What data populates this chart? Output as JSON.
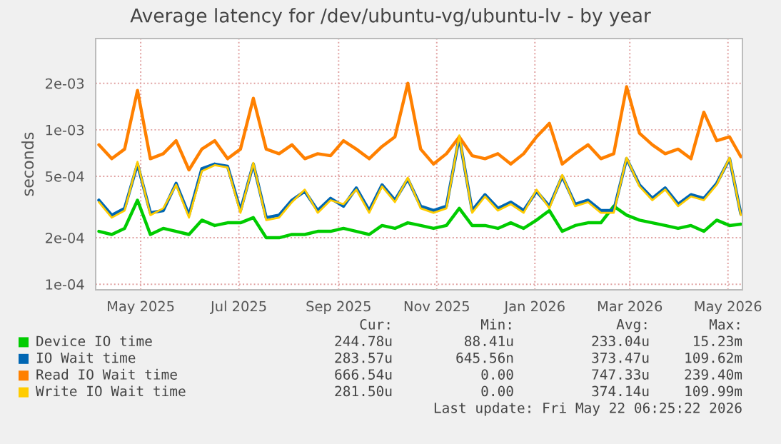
{
  "chart_data": {
    "type": "line",
    "title": "Average latency for /dev/ubuntu-vg/ubuntu-lv - by year",
    "ylabel": "seconds",
    "x": [
      "2025-04-05",
      "2025-04-13",
      "2025-04-21",
      "2025-04-29",
      "2025-05-07",
      "2025-05-15",
      "2025-05-23",
      "2025-05-31",
      "2025-06-08",
      "2025-06-16",
      "2025-06-24",
      "2025-07-02",
      "2025-07-10",
      "2025-07-18",
      "2025-07-26",
      "2025-08-03",
      "2025-08-11",
      "2025-08-19",
      "2025-08-27",
      "2025-09-04",
      "2025-09-12",
      "2025-09-20",
      "2025-09-28",
      "2025-10-06",
      "2025-10-14",
      "2025-10-22",
      "2025-10-30",
      "2025-11-07",
      "2025-11-15",
      "2025-11-23",
      "2025-12-01",
      "2025-12-09",
      "2025-12-17",
      "2025-12-25",
      "2026-01-02",
      "2026-01-10",
      "2026-01-18",
      "2026-01-26",
      "2026-02-03",
      "2026-02-11",
      "2026-02-19",
      "2026-02-27",
      "2026-03-07",
      "2026-03-15",
      "2026-03-23",
      "2026-03-31",
      "2026-04-08",
      "2026-04-16",
      "2026-04-24",
      "2026-05-02",
      "2026-05-09"
    ],
    "series": [
      {
        "name": "Device IO time",
        "color": "#00cc00",
        "values": [
          0.00022,
          0.00021,
          0.00023,
          0.00035,
          0.00021,
          0.00023,
          0.00022,
          0.00021,
          0.00026,
          0.00024,
          0.00025,
          0.00025,
          0.00027,
          0.0002,
          0.0002,
          0.00021,
          0.00021,
          0.00022,
          0.00022,
          0.00023,
          0.00022,
          0.00021,
          0.00024,
          0.00023,
          0.00025,
          0.00024,
          0.00023,
          0.00024,
          0.00031,
          0.00024,
          0.00024,
          0.00023,
          0.00025,
          0.00023,
          0.00026,
          0.0003,
          0.00022,
          0.00024,
          0.00025,
          0.00025,
          0.00032,
          0.00028,
          0.00026,
          0.00025,
          0.00024,
          0.00023,
          0.00024,
          0.00022,
          0.00026,
          0.00024,
          0.000245
        ]
      },
      {
        "name": "IO Wait time",
        "color": "#0066b3",
        "values": [
          0.00035,
          0.00028,
          0.00031,
          0.0006,
          0.00029,
          0.0003,
          0.00045,
          0.00028,
          0.00056,
          0.0006,
          0.00058,
          0.0003,
          0.0006,
          0.00027,
          0.00028,
          0.00035,
          0.0004,
          0.0003,
          0.00036,
          0.00032,
          0.00042,
          0.0003,
          0.00044,
          0.00035,
          0.00048,
          0.00032,
          0.0003,
          0.00032,
          0.0009,
          0.0003,
          0.00038,
          0.00031,
          0.00034,
          0.0003,
          0.0004,
          0.00032,
          0.0005,
          0.00033,
          0.00035,
          0.0003,
          0.0003,
          0.00065,
          0.00044,
          0.00036,
          0.00042,
          0.00033,
          0.00038,
          0.00036,
          0.00045,
          0.00065,
          0.000285
        ]
      },
      {
        "name": "Read IO Wait time",
        "color": "#ff8000",
        "values": [
          0.0008,
          0.00065,
          0.00075,
          0.0018,
          0.00065,
          0.0007,
          0.00085,
          0.00055,
          0.00075,
          0.00085,
          0.00065,
          0.00075,
          0.0016,
          0.00075,
          0.0007,
          0.0008,
          0.00065,
          0.0007,
          0.00068,
          0.00085,
          0.00075,
          0.00065,
          0.00078,
          0.0009,
          0.002,
          0.00075,
          0.0006,
          0.0007,
          0.0009,
          0.00068,
          0.00065,
          0.0007,
          0.0006,
          0.0007,
          0.0009,
          0.0011,
          0.0006,
          0.0007,
          0.0008,
          0.00065,
          0.0007,
          0.0019,
          0.00095,
          0.0008,
          0.0007,
          0.00075,
          0.00065,
          0.0013,
          0.00085,
          0.0009,
          0.00067
        ]
      },
      {
        "name": "Write IO Wait time",
        "color": "#ffcc00",
        "values": [
          0.00034,
          0.00027,
          0.0003,
          0.00062,
          0.00028,
          0.00031,
          0.00044,
          0.00027,
          0.00054,
          0.00059,
          0.00057,
          0.00029,
          0.00061,
          0.00026,
          0.00027,
          0.00034,
          0.00041,
          0.00029,
          0.00035,
          0.00033,
          0.00041,
          0.00029,
          0.00043,
          0.00034,
          0.00049,
          0.00031,
          0.00029,
          0.00031,
          0.00092,
          0.00029,
          0.00037,
          0.0003,
          0.00033,
          0.00029,
          0.00041,
          0.00031,
          0.00051,
          0.00032,
          0.00034,
          0.00029,
          0.00029,
          0.00066,
          0.00043,
          0.00035,
          0.00041,
          0.00032,
          0.00037,
          0.00035,
          0.00044,
          0.00066,
          0.00028
        ]
      }
    ],
    "log": true,
    "ylim": [
      9.2e-05,
      0.0039
    ],
    "yticks": [
      {
        "value": 0.0001,
        "label": "1e-04"
      },
      {
        "value": 0.0002,
        "label": "2e-04"
      },
      {
        "value": 0.0005,
        "label": "5e-04"
      },
      {
        "value": 0.001,
        "label": "1e-03"
      },
      {
        "value": 0.002,
        "label": "2e-03"
      }
    ],
    "xlim": [
      "2025-04-03",
      "2026-05-10"
    ],
    "xticks": [
      {
        "value": "2025-05-01",
        "label": "May 2025"
      },
      {
        "value": "2025-07-01",
        "label": "Jul 2025"
      },
      {
        "value": "2025-09-01",
        "label": "Sep 2025"
      },
      {
        "value": "2025-11-01",
        "label": "Nov 2025"
      },
      {
        "value": "2026-01-01",
        "label": "Jan 2026"
      },
      {
        "value": "2026-03-01",
        "label": "Mar 2026"
      },
      {
        "value": "2026-05-01",
        "label": "May 2026"
      }
    ],
    "grid": true,
    "legend": "bottom",
    "line_style": "solid",
    "marker": "none",
    "annotations": [
      "Cur:",
      "Min:",
      "Avg:",
      "Max:",
      "244.78u",
      "88.41u",
      "233.04u",
      "15.23m",
      "283.57u",
      "645.56n",
      "373.47u",
      "109.62m",
      "666.54u",
      "0.00",
      "747.33u",
      "239.40m",
      "281.50u",
      "0.00",
      "374.14u",
      "109.99m",
      "Last update: Fri May 22 06:25:22 2026"
    ]
  }
}
